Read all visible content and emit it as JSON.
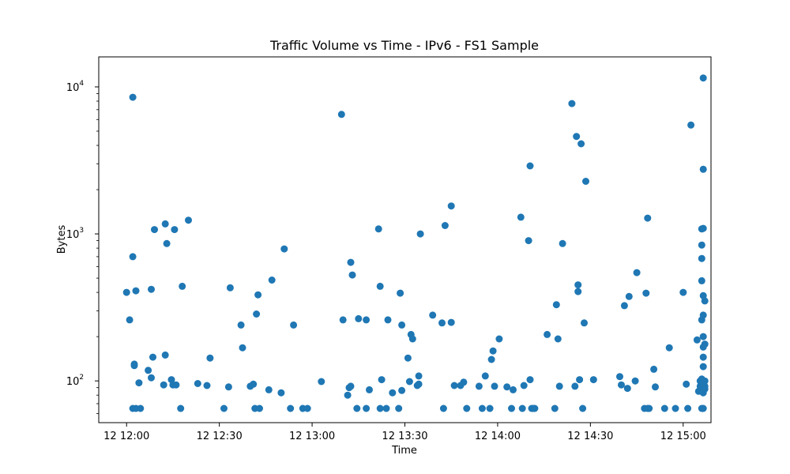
{
  "chart_data": {
    "type": "scatter",
    "title": "Traffic Volume vs Time - IPv6 - FS1 Sample",
    "xlabel": "Time",
    "ylabel": "Bytes",
    "marker_color": "#1f77b4",
    "x_unit": "minutes after 12 12:00",
    "xlim": [
      -9,
      189
    ],
    "ylim": [
      52,
      16000
    ],
    "y_scale": "log",
    "grid": false,
    "x_ticks": [
      {
        "value": 0,
        "label": "12 12:00"
      },
      {
        "value": 30,
        "label": "12 12:30"
      },
      {
        "value": 60,
        "label": "12 13:00"
      },
      {
        "value": 90,
        "label": "12 13:30"
      },
      {
        "value": 120,
        "label": "12 14:00"
      },
      {
        "value": 150,
        "label": "12 14:30"
      },
      {
        "value": 180,
        "label": "12 15:00"
      }
    ],
    "y_ticks": [
      {
        "value": 100,
        "base": "10",
        "exp": "2"
      },
      {
        "value": 1000,
        "base": "10",
        "exp": "3"
      },
      {
        "value": 10000,
        "base": "10",
        "exp": "4"
      }
    ],
    "points": [
      [
        0.0,
        400
      ],
      [
        1.0,
        260
      ],
      [
        2.0,
        700
      ],
      [
        2.0,
        65
      ],
      [
        2.0,
        8500
      ],
      [
        2.5,
        130
      ],
      [
        2.5,
        127
      ],
      [
        3.0,
        410
      ],
      [
        3.0,
        65
      ],
      [
        4.0,
        97
      ],
      [
        4.5,
        65
      ],
      [
        7.0,
        118
      ],
      [
        8.0,
        105
      ],
      [
        8.0,
        420
      ],
      [
        8.5,
        145
      ],
      [
        9.0,
        1070
      ],
      [
        12.0,
        94
      ],
      [
        12.5,
        150
      ],
      [
        12.5,
        1170
      ],
      [
        13.0,
        860
      ],
      [
        14.5,
        102
      ],
      [
        15.0,
        94
      ],
      [
        15.5,
        1070
      ],
      [
        16.0,
        94
      ],
      [
        17.5,
        65
      ],
      [
        18.0,
        440
      ],
      [
        20.0,
        1240
      ],
      [
        23.0,
        96
      ],
      [
        26.0,
        93
      ],
      [
        27.0,
        143
      ],
      [
        31.5,
        65
      ],
      [
        33.0,
        91
      ],
      [
        33.5,
        430
      ],
      [
        37.0,
        240
      ],
      [
        37.5,
        168
      ],
      [
        40.0,
        92
      ],
      [
        41.0,
        95
      ],
      [
        41.5,
        65
      ],
      [
        42.0,
        285
      ],
      [
        42.5,
        385
      ],
      [
        43.0,
        65
      ],
      [
        46.0,
        87
      ],
      [
        47.0,
        485
      ],
      [
        50.0,
        83
      ],
      [
        51.0,
        790
      ],
      [
        53.0,
        65
      ],
      [
        54.0,
        240
      ],
      [
        57.0,
        65
      ],
      [
        58.5,
        65
      ],
      [
        63.0,
        99
      ],
      [
        69.5,
        6500
      ],
      [
        70.0,
        260
      ],
      [
        71.5,
        80
      ],
      [
        72.0,
        90
      ],
      [
        72.5,
        92
      ],
      [
        72.5,
        640
      ],
      [
        73.0,
        525
      ],
      [
        74.5,
        65
      ],
      [
        75.0,
        265
      ],
      [
        77.5,
        65
      ],
      [
        77.5,
        260
      ],
      [
        78.5,
        87
      ],
      [
        81.5,
        1080
      ],
      [
        82.0,
        65
      ],
      [
        82.0,
        440
      ],
      [
        82.5,
        102
      ],
      [
        84.0,
        65
      ],
      [
        84.5,
        260
      ],
      [
        86.0,
        83
      ],
      [
        88.0,
        65
      ],
      [
        88.5,
        395
      ],
      [
        89.0,
        240
      ],
      [
        89.0,
        86
      ],
      [
        91.0,
        143
      ],
      [
        91.5,
        99
      ],
      [
        92.0,
        207
      ],
      [
        92.5,
        193
      ],
      [
        94.0,
        93
      ],
      [
        94.5,
        108
      ],
      [
        94.5,
        95
      ],
      [
        95.0,
        1000
      ],
      [
        99.0,
        280
      ],
      [
        102.0,
        248
      ],
      [
        102.5,
        65
      ],
      [
        103.0,
        1140
      ],
      [
        105.0,
        1550
      ],
      [
        105.0,
        250
      ],
      [
        106.0,
        93
      ],
      [
        108.0,
        93
      ],
      [
        109.0,
        98
      ],
      [
        110.0,
        65
      ],
      [
        114.0,
        92
      ],
      [
        115.0,
        65
      ],
      [
        116.0,
        108
      ],
      [
        117.5,
        65
      ],
      [
        118.0,
        140
      ],
      [
        118.5,
        160
      ],
      [
        119.0,
        92
      ],
      [
        120.5,
        193
      ],
      [
        123.0,
        91
      ],
      [
        124.5,
        65
      ],
      [
        125.0,
        87
      ],
      [
        127.5,
        1300
      ],
      [
        128.0,
        65
      ],
      [
        128.5,
        93
      ],
      [
        130.0,
        900
      ],
      [
        130.5,
        2900
      ],
      [
        130.5,
        102
      ],
      [
        131.0,
        65
      ],
      [
        131.5,
        65
      ],
      [
        132.0,
        65
      ],
      [
        136.0,
        207
      ],
      [
        138.5,
        65
      ],
      [
        139.0,
        330
      ],
      [
        139.5,
        193
      ],
      [
        140.0,
        92
      ],
      [
        141.0,
        860
      ],
      [
        144.0,
        7700
      ],
      [
        145.0,
        92
      ],
      [
        145.5,
        4600
      ],
      [
        146.0,
        405
      ],
      [
        146.0,
        450
      ],
      [
        146.5,
        102
      ],
      [
        147.0,
        4100
      ],
      [
        147.5,
        65
      ],
      [
        148.0,
        248
      ],
      [
        148.5,
        2280
      ],
      [
        151.0,
        102
      ],
      [
        159.5,
        107
      ],
      [
        160.0,
        94
      ],
      [
        161.0,
        325
      ],
      [
        162.0,
        89
      ],
      [
        162.5,
        375
      ],
      [
        164.5,
        100
      ],
      [
        165.0,
        545
      ],
      [
        167.5,
        65
      ],
      [
        168.0,
        395
      ],
      [
        168.5,
        65
      ],
      [
        168.5,
        1280
      ],
      [
        169.0,
        65
      ],
      [
        170.5,
        120
      ],
      [
        171.0,
        91
      ],
      [
        174.0,
        65
      ],
      [
        175.5,
        168
      ],
      [
        177.5,
        65
      ],
      [
        180.0,
        400
      ],
      [
        181.0,
        95
      ],
      [
        181.5,
        65
      ],
      [
        182.5,
        5500
      ],
      [
        184.5,
        190
      ],
      [
        185.0,
        85
      ],
      [
        185.5,
        92
      ],
      [
        185.5,
        100
      ],
      [
        186.0,
        1080
      ],
      [
        186.0,
        680
      ],
      [
        186.0,
        480
      ],
      [
        186.0,
        840
      ],
      [
        186.0,
        260
      ],
      [
        186.0,
        103
      ],
      [
        186.0,
        90
      ],
      [
        186.0,
        65
      ],
      [
        186.5,
        11500
      ],
      [
        186.5,
        2750
      ],
      [
        186.5,
        1090
      ],
      [
        186.5,
        380
      ],
      [
        186.5,
        280
      ],
      [
        186.5,
        200
      ],
      [
        186.5,
        170
      ],
      [
        186.5,
        145
      ],
      [
        186.5,
        125
      ],
      [
        186.5,
        95
      ],
      [
        186.5,
        83
      ],
      [
        186.5,
        65
      ],
      [
        187.0,
        350
      ],
      [
        187.0,
        178
      ],
      [
        187.0,
        100
      ],
      [
        187.0,
        92
      ],
      [
        187.0,
        88
      ]
    ]
  }
}
